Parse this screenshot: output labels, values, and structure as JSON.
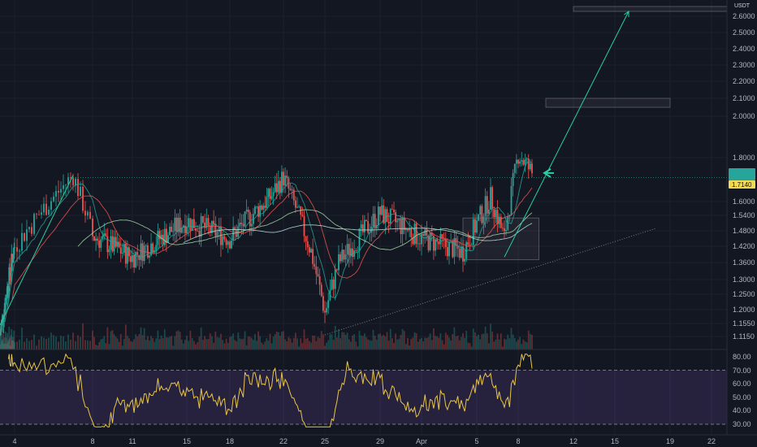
{
  "chart_data": [
    {
      "type": "candlestick",
      "quote_unit": "USDT",
      "ylim": [
        1.1,
        2.65
      ],
      "y_ticks": [
        "2.6000",
        "2.5000",
        "2.4000",
        "2.3000",
        "2.2000",
        "2.1000",
        "2.0000",
        "1.8000",
        "1.6000",
        "1.5400",
        "1.4800",
        "1.4200",
        "1.3600",
        "1.3000",
        "1.2500",
        "1.2000",
        "1.1550",
        "1.1150"
      ],
      "x_ticks": [
        "4",
        "8",
        "11",
        "15",
        "18",
        "22",
        "25",
        "29",
        "Apr",
        "5",
        "8",
        "12",
        "15",
        "19",
        "22"
      ],
      "current_price_label": "1.7140",
      "last_price_label": "",
      "colors": {
        "up": "#26a69a",
        "down": "#ef5350",
        "background": "#131722",
        "grid": "#1f2330"
      },
      "key_price_points": [
        {
          "date": "Mar 1",
          "price": 1.12
        },
        {
          "date": "Mar 7",
          "price": 1.72
        },
        {
          "date": "Mar 8",
          "price": 1.46
        },
        {
          "date": "Mar 11",
          "price": 1.38
        },
        {
          "date": "Mar 15",
          "price": 1.52
        },
        {
          "date": "Mar 18",
          "price": 1.45
        },
        {
          "date": "Mar 21",
          "price": 1.62
        },
        {
          "date": "Mar 22",
          "price": 1.71
        },
        {
          "date": "Mar 24",
          "price": 1.4
        },
        {
          "date": "Mar 25",
          "price": 1.19
        },
        {
          "date": "Mar 26",
          "price": 1.36
        },
        {
          "date": "Mar 29",
          "price": 1.55
        },
        {
          "date": "Apr 1",
          "price": 1.45
        },
        {
          "date": "Apr 4",
          "price": 1.4
        },
        {
          "date": "Apr 6",
          "price": 1.62
        },
        {
          "date": "Apr 7",
          "price": 1.45
        },
        {
          "date": "Apr 8",
          "price": 1.82
        },
        {
          "date": "Apr 9",
          "price": 1.73
        }
      ],
      "moving_averages": [
        {
          "color": "#26a69a"
        },
        {
          "color": "#ef5350"
        },
        {
          "color": "#a5d6a7"
        },
        {
          "color": "#b2dfdb"
        }
      ],
      "drawings": {
        "horizontal_level": 1.71,
        "rectangles": [
          {
            "x0": "Apr 4",
            "x1": "Apr 9.5",
            "y0": 1.37,
            "y1": 1.53
          },
          {
            "x0": "Apr 10",
            "x1": "Apr 19",
            "y0": 2.05,
            "y1": 2.1
          },
          {
            "x0": "Apr 12",
            "x1": "Apr 24",
            "y0": 2.63,
            "y1": 2.66
          }
        ],
        "trend_lines": [
          {
            "from": [
              "Mar 1",
              1.15
            ],
            "to": [
              "Mar 7",
              1.72
            ]
          },
          {
            "from": [
              "Apr 7",
              1.38
            ],
            "to": [
              "Apr 16",
              2.63
            ],
            "arrow": true
          },
          {
            "from": [
              "Mar 25",
              1.12
            ],
            "to": [
              "Apr 18",
              1.49
            ],
            "dotted": true
          }
        ]
      }
    },
    {
      "type": "line",
      "indicator_panel": true,
      "ylim": [
        25,
        85
      ],
      "y_ticks": [
        "80.00",
        "70.00",
        "60.00",
        "50.00",
        "40.00",
        "30.00"
      ],
      "band": [
        30,
        70
      ],
      "line_color": "#e8c547",
      "band_color": "#7e57c2",
      "x_ticks": [
        "4",
        "8",
        "11",
        "15",
        "18",
        "22",
        "25",
        "29",
        "Apr",
        "5",
        "8",
        "12",
        "15",
        "19",
        "22"
      ]
    }
  ]
}
